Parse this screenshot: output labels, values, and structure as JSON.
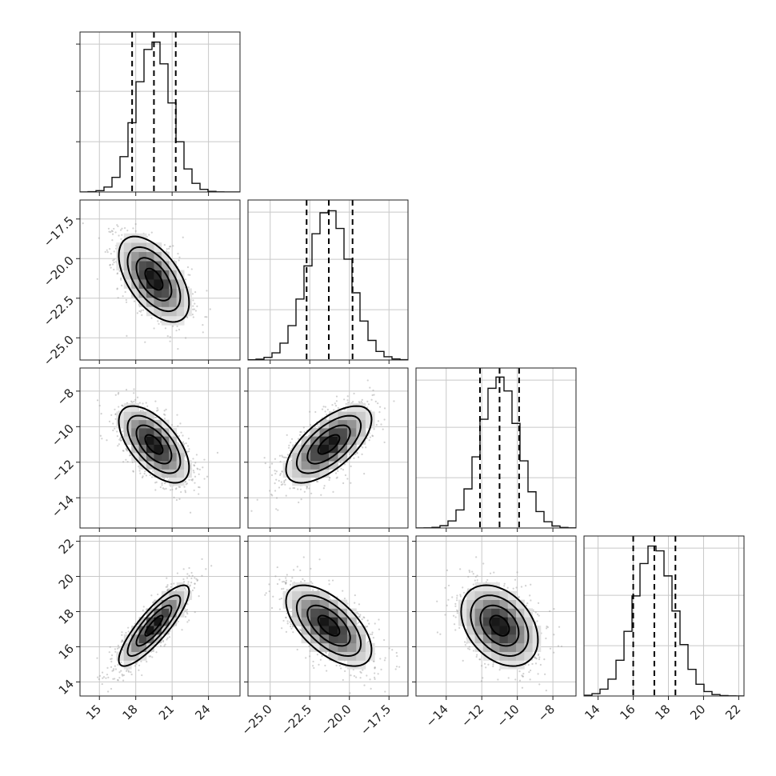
{
  "chart_data": {
    "type": "corner",
    "grid": true,
    "parameters": [
      {
        "range": [
          13.4,
          26.6
        ],
        "mean": 19.5,
        "sd": 1.45,
        "tick_values": [
          15,
          18,
          21,
          24
        ],
        "tick_labels": [
          "15",
          "18",
          "21",
          "24"
        ],
        "quantiles": [
          17.7,
          19.5,
          21.3
        ]
      },
      {
        "range": [
          -26.4,
          -16.3
        ],
        "mean": -21.3,
        "sd": 1.35,
        "tick_values": [
          -25.0,
          -22.5,
          -20.0,
          -17.5
        ],
        "tick_labels": [
          "−25.0",
          "−22.5",
          "−20.0",
          "−17.5"
        ],
        "quantiles": [
          -22.7,
          -21.3,
          -19.8
        ]
      },
      {
        "range": [
          -15.7,
          -6.7
        ],
        "mean": -11.0,
        "sd": 1.08,
        "tick_values": [
          -14,
          -12,
          -10,
          -8
        ],
        "tick_labels": [
          "−14",
          "−12",
          "−10",
          "−8"
        ],
        "quantiles": [
          -12.1,
          -11.0,
          -9.9
        ]
      },
      {
        "range": [
          13.2,
          22.3
        ],
        "mean": 17.2,
        "sd": 1.15,
        "tick_values": [
          14,
          16,
          18,
          20,
          22
        ],
        "tick_labels": [
          "14",
          "16",
          "18",
          "20",
          "22"
        ],
        "quantiles": [
          16.0,
          17.2,
          18.4
        ]
      }
    ],
    "correlations": [
      [
        1.0,
        -0.55,
        -0.6,
        0.85
      ],
      [
        -0.55,
        1.0,
        0.65,
        -0.6
      ],
      [
        -0.6,
        0.65,
        1.0,
        -0.35
      ],
      [
        0.85,
        -0.6,
        -0.35,
        1.0
      ]
    ],
    "histogram_bins": 20,
    "contour_levels_sigma": [
      0.5,
      1.0,
      1.5,
      2.0
    ]
  }
}
